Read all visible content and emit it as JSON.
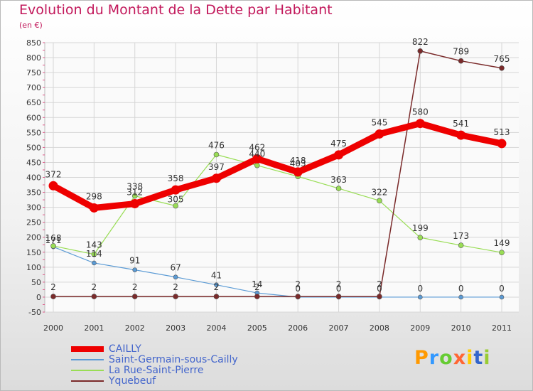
{
  "chart_data": {
    "type": "line",
    "title": "Evolution du Montant de la Dette par Habitant",
    "ylabel": "(en €)",
    "xlabel": "",
    "categories": [
      "2000",
      "2001",
      "2002",
      "2003",
      "2004",
      "2005",
      "2006",
      "2007",
      "2008",
      "2009",
      "2010",
      "2011"
    ],
    "ylim": [
      -50,
      850
    ],
    "yticks": [
      -50,
      0,
      50,
      100,
      150,
      200,
      250,
      300,
      350,
      400,
      450,
      500,
      550,
      600,
      650,
      700,
      750,
      800,
      850
    ],
    "grid": true,
    "legend_position": "bottom-left",
    "series": [
      {
        "name": "CAILLY",
        "color": "#ee0000",
        "values": [
          372,
          298,
          312,
          358,
          397,
          462,
          418,
          475,
          545,
          580,
          541,
          513
        ]
      },
      {
        "name": "Saint-Germain-sous-Cailly",
        "color": "#5b9bd5",
        "values": [
          168,
          114,
          91,
          67,
          41,
          14,
          0,
          0,
          0,
          0,
          0,
          0
        ]
      },
      {
        "name": "La Rue-Saint-Pierre",
        "color": "#99dd55",
        "values": [
          171,
          143,
          338,
          305,
          476,
          440,
          403,
          363,
          322,
          199,
          173,
          149
        ]
      },
      {
        "name": "Yquebeuf",
        "color": "#7a2a2a",
        "values": [
          2,
          2,
          2,
          2,
          2,
          2,
          2,
          2,
          2,
          822,
          789,
          765
        ]
      }
    ]
  },
  "logo": {
    "text": "Proxiti",
    "colors": [
      "#ff9900",
      "#3399ff",
      "#66cc33",
      "#ff6633",
      "#ffcc00",
      "#3366cc",
      "#99cc33"
    ]
  }
}
